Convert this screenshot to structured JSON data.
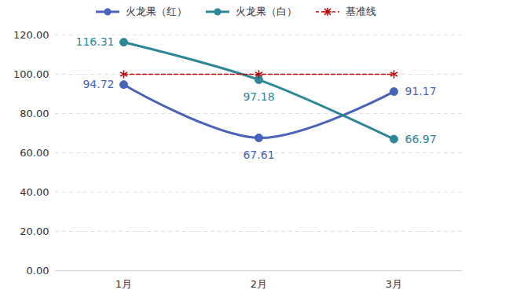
{
  "chart_data": {
    "type": "line",
    "categories": [
      "1月",
      "2月",
      "3月"
    ],
    "series": [
      {
        "name": "火龙果（红）",
        "color": "#4863b8",
        "marker": "circle",
        "line_style": "solid",
        "data_labels": true,
        "values": [
          94.72,
          67.61,
          91.17
        ]
      },
      {
        "name": "火龙果（白）",
        "color": "#2e8796",
        "marker": "circle",
        "line_style": "solid",
        "data_labels": true,
        "values": [
          116.31,
          97.18,
          66.97
        ]
      },
      {
        "name": "基准线",
        "color": "#c00000",
        "marker": "asterisk",
        "line_style": "dashed",
        "data_labels": false,
        "values": [
          100,
          100,
          100
        ]
      }
    ],
    "ylim": [
      0,
      120
    ],
    "yticks": [
      {
        "value": 0,
        "label": "0.00"
      },
      {
        "value": 20,
        "label": "20.00"
      },
      {
        "value": 40,
        "label": "40.00"
      },
      {
        "value": 60,
        "label": "60.00"
      },
      {
        "value": 80,
        "label": "80.00"
      },
      {
        "value": 100,
        "label": "100.00"
      },
      {
        "value": 120,
        "label": "120.00"
      }
    ],
    "grid": true,
    "legend": "top"
  }
}
